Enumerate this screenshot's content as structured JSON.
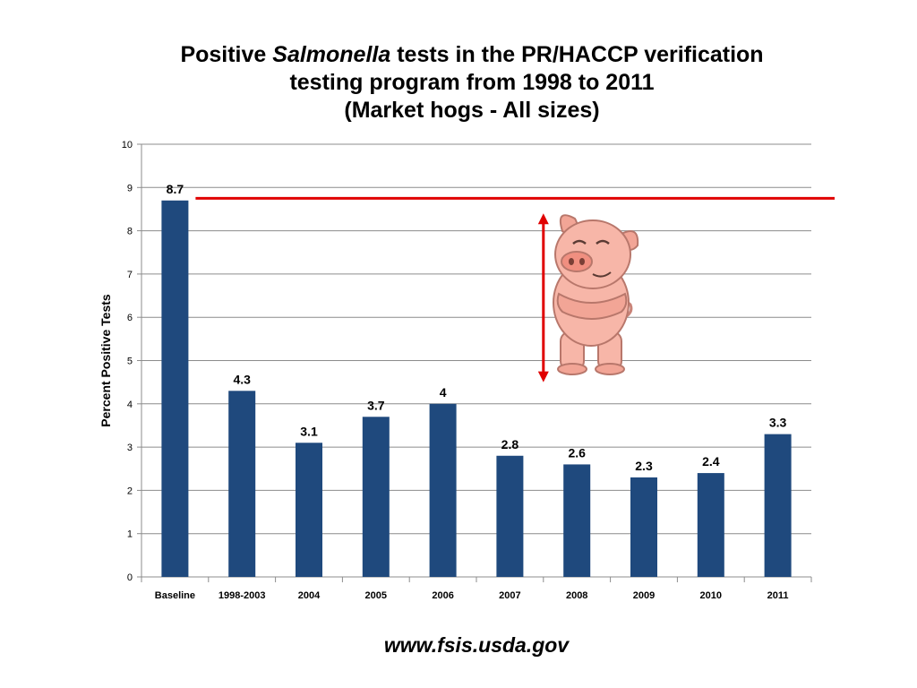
{
  "title": {
    "line1_pre": "Positive ",
    "line1_italic": "Salmonella",
    "line1_post": " tests in the PR/HACCP verification",
    "line2": "testing program from 1998 to 2011",
    "line3": "(Market hogs - All sizes)"
  },
  "footer": {
    "source": "www.fsis.usda.gov"
  },
  "chart_data": {
    "type": "bar",
    "title": "Positive Salmonella tests in the PR/HACCP verification testing program from 1998 to 2011 (Market hogs - All sizes)",
    "categories": [
      "Baseline",
      "1998-2003",
      "2004",
      "2005",
      "2006",
      "2007",
      "2008",
      "2009",
      "2010",
      "2011"
    ],
    "values": [
      8.7,
      4.3,
      3.1,
      3.7,
      4,
      2.8,
      2.6,
      2.3,
      2.4,
      3.3
    ],
    "data_labels": [
      "8.7",
      "4.3",
      "3.1",
      "3.7",
      "4",
      "2.8",
      "2.6",
      "2.3",
      "2.4",
      "3.3"
    ],
    "xlabel": "",
    "ylabel": "Percent Positive Tests",
    "ylim": [
      0,
      10
    ],
    "yticks": [
      0,
      1,
      2,
      3,
      4,
      5,
      6,
      7,
      8,
      9,
      10
    ],
    "ytick_labels": [
      "0",
      "1",
      "2",
      "3",
      "4",
      "5",
      "6",
      "7",
      "8",
      "9",
      "10"
    ],
    "grid": true,
    "legend": "none",
    "bar_color": "#1F497D",
    "annotations": {
      "reference_line": {
        "value": 8.75,
        "from_category": "1998-2003",
        "color": "#E00000"
      },
      "double_arrow": {
        "from": 4.5,
        "to": 8.4,
        "between_categories": [
          "2007",
          "2008"
        ],
        "color": "#E00000"
      },
      "illustration": "cartoon-pig"
    }
  }
}
